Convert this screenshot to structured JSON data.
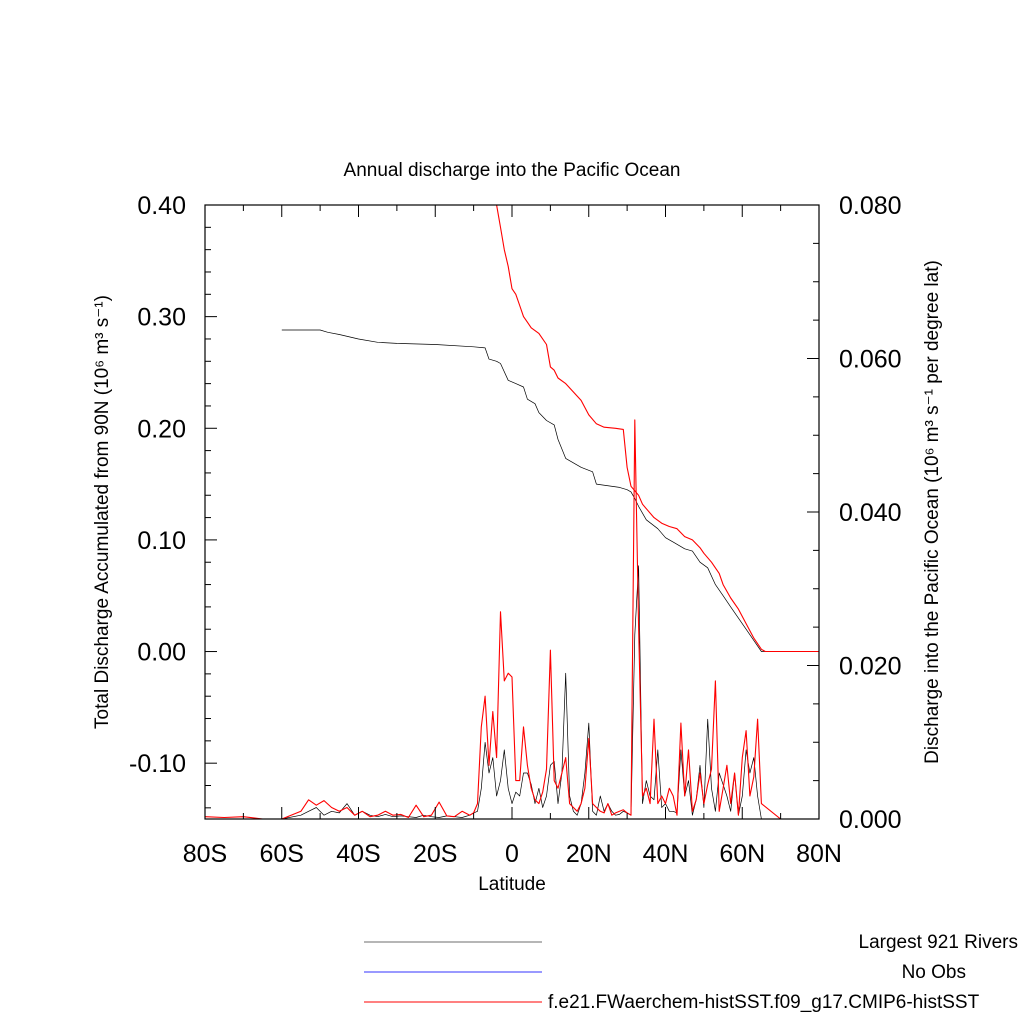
{
  "chart_data": {
    "type": "line",
    "title": "Annual discharge into the Pacific Ocean",
    "xlabel": "Latitude",
    "ylabel_left": "Total Discharge Accumulated from 90N (10⁶ m³ s⁻¹)",
    "ylabel_right": "Discharge into the Pacific Ocean (10⁶ m³ s⁻¹ per degree lat)",
    "xlim": [
      -80,
      80
    ],
    "ylim_left": [
      -0.15,
      0.4
    ],
    "ylim_right": [
      0,
      0.08
    ],
    "x_ticks": [
      -80,
      -60,
      -40,
      -20,
      0,
      20,
      40,
      60,
      80
    ],
    "x_tick_labels": [
      "80S",
      "60S",
      "40S",
      "20S",
      "0",
      "20N",
      "40N",
      "60N",
      "80N"
    ],
    "y_left_ticks": [
      -0.1,
      0.0,
      0.1,
      0.2,
      0.3,
      0.4
    ],
    "y_left_tick_labels": [
      "-0.10",
      "0.00",
      "0.10",
      "0.20",
      "0.30",
      "0.40"
    ],
    "y_right_ticks": [
      0,
      0.02,
      0.04,
      0.06,
      0.08
    ],
    "y_right_tick_labels": [
      "0.000",
      "0.020",
      "0.040",
      "0.060",
      "0.080"
    ],
    "grid": false,
    "legend_position": "bottom",
    "series": [
      {
        "name": "Largest 921 Rivers",
        "color": "#000000",
        "axis": "left",
        "kind": "accumulated",
        "x": [
          -60,
          -50,
          -48,
          -45,
          -40,
          -35,
          -30,
          -20,
          -10,
          -7,
          -6,
          -4,
          -3,
          -1,
          1,
          3,
          4,
          6,
          7,
          9,
          11,
          12,
          14,
          18,
          21,
          22,
          28,
          30,
          31,
          32,
          33,
          35,
          38,
          40,
          42,
          45,
          47,
          49,
          51,
          53,
          55,
          57,
          59,
          61,
          63,
          65,
          70,
          80
        ],
        "y": [
          0.288,
          0.288,
          0.286,
          0.284,
          0.28,
          0.277,
          0.276,
          0.275,
          0.273,
          0.272,
          0.262,
          0.26,
          0.258,
          0.243,
          0.24,
          0.237,
          0.226,
          0.222,
          0.214,
          0.207,
          0.203,
          0.19,
          0.173,
          0.165,
          0.161,
          0.15,
          0.147,
          0.145,
          0.143,
          0.137,
          0.13,
          0.118,
          0.11,
          0.102,
          0.098,
          0.092,
          0.09,
          0.08,
          0.075,
          0.06,
          0.05,
          0.04,
          0.03,
          0.02,
          0.01,
          0.0,
          0.0,
          0.0
        ]
      },
      {
        "name": "No Obs",
        "color": "#3333ff",
        "axis": "left",
        "kind": "legend-only",
        "x": [],
        "y": []
      },
      {
        "name": "f.e21.FWaerchem-histSST.f09_g17.CMIP6-histSST",
        "color": "#ff0000",
        "axis": "left",
        "kind": "accumulated",
        "x": [
          -4,
          -3,
          -2,
          -1,
          0,
          1,
          2,
          3,
          4,
          5,
          7,
          9,
          10,
          11,
          12,
          14,
          18,
          20,
          22,
          24,
          27,
          29,
          30,
          31,
          33,
          34,
          35,
          37,
          39,
          41,
          43,
          45,
          47,
          49,
          50,
          52,
          54,
          55,
          57,
          59,
          61,
          63,
          65,
          66,
          70,
          80
        ],
        "y": [
          0.4,
          0.38,
          0.36,
          0.345,
          0.325,
          0.32,
          0.31,
          0.3,
          0.295,
          0.29,
          0.285,
          0.275,
          0.255,
          0.252,
          0.245,
          0.24,
          0.225,
          0.212,
          0.204,
          0.201,
          0.2,
          0.199,
          0.165,
          0.148,
          0.14,
          0.132,
          0.128,
          0.12,
          0.115,
          0.112,
          0.11,
          0.103,
          0.1,
          0.093,
          0.088,
          0.08,
          0.07,
          0.06,
          0.048,
          0.038,
          0.025,
          0.012,
          0.002,
          0.0,
          0.0,
          0.0
        ]
      },
      {
        "name": "Largest 921 Rivers",
        "color": "#000000",
        "axis": "right",
        "kind": "per-degree",
        "x": [
          -80,
          -75,
          -70,
          -65,
          -60,
          -55,
          -53,
          -51,
          -49,
          -47,
          -45,
          -43,
          -41,
          -39,
          -37,
          -35,
          -33,
          -31,
          -29,
          -27,
          -25,
          -23,
          -21,
          -19,
          -17,
          -15,
          -13,
          -11,
          -10,
          -9,
          -8,
          -7,
          -6,
          -5,
          -4,
          -3,
          -2,
          -1,
          0,
          1,
          2,
          3,
          4,
          5,
          6,
          7,
          8,
          9,
          10,
          11,
          12,
          13,
          14,
          15,
          16,
          17,
          18,
          19,
          20,
          21,
          22,
          23,
          24,
          25,
          26,
          27,
          28,
          29,
          30,
          31,
          32,
          33,
          34,
          35,
          36,
          37,
          38,
          39,
          40,
          41,
          42,
          43,
          44,
          45,
          46,
          47,
          48,
          49,
          50,
          51,
          52,
          53,
          54,
          55,
          56,
          57,
          58,
          59,
          60,
          61,
          62,
          63,
          64,
          65,
          70,
          80
        ],
        "y": [
          0,
          0,
          0,
          0,
          0,
          0.0005,
          0.001,
          0.0015,
          0.0005,
          0.001,
          0.0008,
          0.002,
          0.0005,
          0.001,
          0.0005,
          0.0003,
          0.0006,
          0.0003,
          0.0004,
          0.0003,
          0.0002,
          0.0005,
          0.0003,
          0.0002,
          0.0004,
          0.0003,
          0.0002,
          0.0005,
          0.0008,
          0.001,
          0.004,
          0.01,
          0.006,
          0.008,
          0.003,
          0.005,
          0.009,
          0.004,
          0.002,
          0.0035,
          0.003,
          0.006,
          0.006,
          0.0045,
          0.002,
          0.004,
          0.0015,
          0.003,
          0.007,
          0.0075,
          0.002,
          0.006,
          0.019,
          0.003,
          0.001,
          0.0005,
          0.002,
          0.006,
          0.0125,
          0.001,
          0.0005,
          0.003,
          0.001,
          0.002,
          0.001,
          0.0005,
          0.0006,
          0.001,
          0.0008,
          0.0005,
          0.024,
          0.033,
          0.002,
          0.005,
          0.003,
          0.0025,
          0.009,
          0.0015,
          0.002,
          0.001,
          0.001,
          0.0008,
          0.009,
          0.003,
          0.005,
          0.0005,
          0.0025,
          0.007,
          0.0015,
          0.013,
          0.004,
          0.001,
          0.006,
          0.0045,
          0.003,
          0.001,
          0.006,
          0.0005,
          0.003,
          0.009,
          0.006,
          0.008,
          0.003,
          0,
          0,
          0
        ]
      },
      {
        "name": "f.e21.FWaerchem-histSST.f09_g17.CMIP6-histSST",
        "color": "#ff0000",
        "axis": "right",
        "kind": "per-degree",
        "x": [
          -80,
          -75,
          -70,
          -65,
          -60,
          -55,
          -53,
          -51,
          -49,
          -47,
          -45,
          -43,
          -41,
          -39,
          -37,
          -35,
          -33,
          -31,
          -29,
          -27,
          -25,
          -23,
          -21,
          -19,
          -17,
          -15,
          -13,
          -11,
          -10,
          -9,
          -8,
          -7,
          -6,
          -5,
          -4,
          -3,
          -2,
          -1,
          0,
          1,
          2,
          3,
          4,
          5,
          6,
          7,
          8,
          9,
          10,
          11,
          12,
          13,
          14,
          15,
          16,
          17,
          18,
          19,
          20,
          21,
          22,
          23,
          24,
          25,
          26,
          27,
          28,
          29,
          30,
          31,
          32,
          33,
          34,
          35,
          36,
          37,
          38,
          39,
          40,
          41,
          42,
          43,
          44,
          45,
          46,
          47,
          48,
          49,
          50,
          51,
          52,
          53,
          54,
          55,
          56,
          57,
          58,
          59,
          60,
          61,
          62,
          63,
          64,
          65,
          70,
          80
        ],
        "y": [
          0.0003,
          0.0002,
          0.0003,
          0,
          0,
          0.001,
          0.0025,
          0.0018,
          0.0024,
          0.0015,
          0.001,
          0.0015,
          0.0005,
          0.001,
          0.0003,
          0.0005,
          0.001,
          0.0005,
          0.0006,
          0.0002,
          0.0018,
          0.0003,
          0.0005,
          0.0022,
          0.0004,
          0.0003,
          0.001,
          0.0005,
          0.0008,
          0.002,
          0.012,
          0.016,
          0.007,
          0.014,
          0.008,
          0.027,
          0.018,
          0.019,
          0.0185,
          0.005,
          0.005,
          0.012,
          0.007,
          0.004,
          0.0025,
          0.002,
          0.0035,
          0.0065,
          0.022,
          0.005,
          0.004,
          0.006,
          0.008,
          0.002,
          0.0015,
          0.001,
          0.002,
          0.004,
          0.0105,
          0.002,
          0.0015,
          0.001,
          0.0008,
          0.002,
          0.0005,
          0.0008,
          0.001,
          0.0012,
          0.0008,
          0.0005,
          0.052,
          0.025,
          0.003,
          0.004,
          0.002,
          0.013,
          0.002,
          0.003,
          0.002,
          0.004,
          0.003,
          0.0005,
          0.0125,
          0.003,
          0.009,
          0.001,
          0.0025,
          0.006,
          0.002,
          0.0045,
          0.0065,
          0.018,
          0.001,
          0.004,
          0.007,
          0.002,
          0.006,
          0.0005,
          0.008,
          0.0115,
          0.003,
          0.0055,
          0.013,
          0.002,
          0,
          0
        ]
      }
    ]
  },
  "legend": {
    "items": [
      {
        "label": "Largest 921 Rivers",
        "color": "#6e6e6e"
      },
      {
        "label": "No Obs",
        "color": "#3333ff"
      },
      {
        "label": "f.e21.FWaerchem-histSST.f09_g17.CMIP6-histSST",
        "color": "#ff0000"
      }
    ]
  }
}
